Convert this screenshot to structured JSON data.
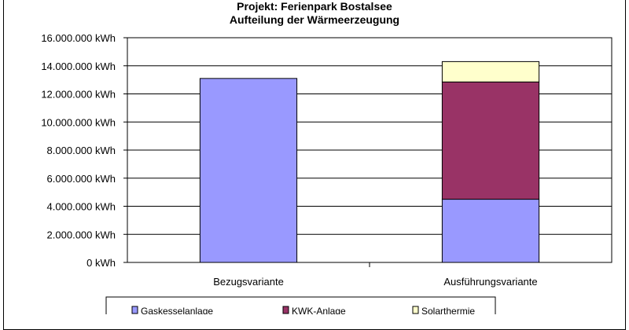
{
  "chart_data": {
    "type": "bar",
    "stacked": true,
    "title": "Projekt: Ferienpark Bostalsee",
    "subtitle": "Aufteilung der Wärmeerzeugung",
    "xlabel": "",
    "ylabel": "",
    "ylim": [
      0,
      16000000
    ],
    "yticks": [
      0,
      2000000,
      4000000,
      6000000,
      8000000,
      10000000,
      12000000,
      14000000,
      16000000
    ],
    "ytick_labels": [
      "0 kWh",
      "2.000.000 kWh",
      "4.000.000 kWh",
      "6.000.000 kWh",
      "8.000.000 kWh",
      "10.000.000 kWh",
      "12.000.000 kWh",
      "14.000.000 kWh",
      "16.000.000 kWh"
    ],
    "categories": [
      "Bezugsvariante",
      "Ausführungsvariante"
    ],
    "series": [
      {
        "name": "Gaskesselanlage",
        "color": "#9999ff",
        "values": [
          13100000,
          4500000
        ]
      },
      {
        "name": "KWK-Anlage",
        "color": "#993366",
        "values": [
          0,
          8350000
        ]
      },
      {
        "name": "Solarthermie",
        "color": "#ffffcc",
        "values": [
          0,
          1450000
        ]
      }
    ],
    "grid": true,
    "legend_position": "bottom"
  }
}
